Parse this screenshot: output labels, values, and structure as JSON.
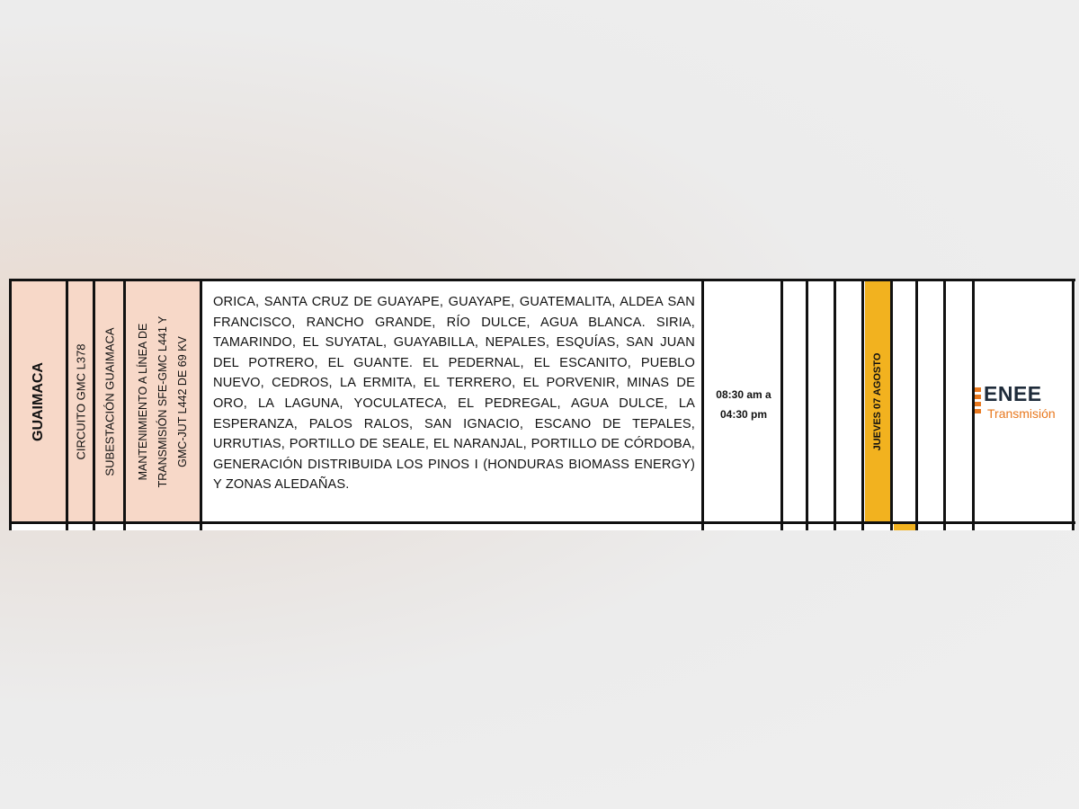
{
  "row": {
    "department": "GUAIMACA",
    "circuit": "CIRCUITO GMC L378",
    "substation": "SUBESTACIÓN GUAIMACA",
    "work_line1": "MANTENIMIENTO A LÍNEA DE",
    "work_line2": "TRANSMISIÓN SFE-GMC L441 Y",
    "work_line3": "GMC-JUT L442 DE 69 KV",
    "affected_areas": "ORICA, SANTA CRUZ DE GUAYAPE, GUAYAPE, GUATEMALITA, ALDEA SAN FRANCISCO, RANCHO GRANDE, RÍO DULCE, AGUA BLANCA. SIRIA, TAMARINDO, EL SUYATAL, GUAYABILLA, NEPALES, ESQUÍAS, SAN JUAN DEL POTRERO, EL GUANTE. EL PEDERNAL, EL ESCANITO, PUEBLO NUEVO, CEDROS, LA ERMITA, EL TERRERO, EL PORVENIR, MINAS DE ORO, LA LAGUNA, YOCULATECA, EL PEDREGAL, AGUA DULCE, LA ESPERANZA, PALOS RALOS, SAN IGNACIO, ESCANO DE TEPALES, URRUTIAS, PORTILLO DE SEALE, EL NARANJAL, PORTILLO DE CÓRDOBA, GENERACIÓN DISTRIBUIDA LOS PINOS I (HONDURAS BIOMASS ENERGY) Y ZONAS ALEDAÑAS.",
    "time_start": "08:30 am a",
    "time_end": "04:30 pm",
    "day": "JUEVES 07 AGOSTO"
  },
  "logo": {
    "name": "ENEE",
    "subtitle": "Transmisión",
    "icon": "enee-logo-bars"
  },
  "colors": {
    "peach": "#f7d8c8",
    "highlight_day": "#f2b21f",
    "logo_orange": "#e8781e",
    "logo_navy": "#1e2b3a"
  }
}
